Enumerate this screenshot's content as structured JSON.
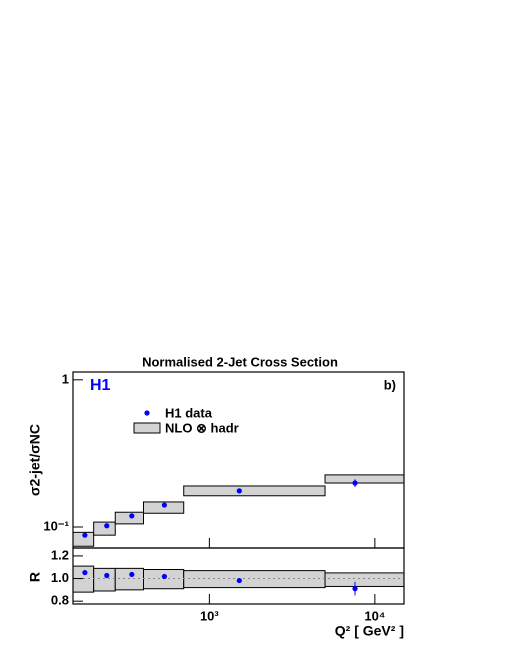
{
  "chart_data": [
    {
      "type": "scatter",
      "title": "Normalised 2-Jet Cross Section",
      "ylabel": "σ2-jet/σNC",
      "annotations": [
        "H1",
        "b)"
      ],
      "annotation_colors": [
        "#0000ff",
        "#000000"
      ],
      "log_x": true,
      "log_y": true,
      "xlim": [
        150,
        15000
      ],
      "xticks": [
        1000,
        10000
      ],
      "ylim": [
        0.072,
        1.13
      ],
      "yticks": [
        {
          "value": 1,
          "label": "1"
        },
        {
          "value": 0.1,
          "label": "10⁻¹"
        }
      ],
      "x": [
        177,
        240,
        340,
        535,
        1517,
        7590
      ],
      "series": [
        {
          "name": "H1 data",
          "color": "#0000ff",
          "values": [
            0.088,
            0.102,
            0.119,
            0.141,
            0.176,
            0.199
          ],
          "errors": [
            0.002,
            0.002,
            0.002,
            0.003,
            0.003,
            0.012
          ]
        }
      ],
      "band": {
        "name": "NLO ⊗ hadr",
        "color": "#d3d3d3",
        "bins": [
          150,
          200,
          270,
          400,
          700,
          5000,
          15000
        ],
        "low": [
          0.074,
          0.088,
          0.105,
          0.124,
          0.163,
          0.199
        ],
        "high": [
          0.092,
          0.108,
          0.126,
          0.148,
          0.19,
          0.226
        ]
      }
    },
    {
      "type": "scatter",
      "ylabel": "R",
      "xlabel": "Q² [ GeV² ]",
      "log_x": true,
      "log_y": false,
      "xlim": [
        150,
        15000
      ],
      "xticks": [
        {
          "value": 1000,
          "label": "10³"
        },
        {
          "value": 10000,
          "label": "10⁴"
        }
      ],
      "ylim": [
        0.775,
        1.27
      ],
      "yticks": [
        0.8,
        {
          "value": 1,
          "label": "1.0"
        },
        1.2
      ],
      "reference": 1,
      "x": [
        177,
        240,
        340,
        535,
        1517,
        7590
      ],
      "series": [
        {
          "name": "H1 data",
          "color": "#0000ff",
          "values": [
            1.053,
            1.027,
            1.036,
            1.018,
            0.982,
            0.911
          ],
          "errors": [
            0.01,
            0.01,
            0.01,
            0.012,
            0.015,
            0.06
          ]
        }
      ],
      "band": {
        "color": "#d3d3d3",
        "bins": [
          150,
          200,
          270,
          400,
          700,
          5000,
          15000
        ],
        "low": [
          0.88,
          0.89,
          0.9,
          0.91,
          0.92,
          0.93
        ],
        "high": [
          1.11,
          1.09,
          1.09,
          1.08,
          1.07,
          1.05
        ]
      }
    }
  ]
}
